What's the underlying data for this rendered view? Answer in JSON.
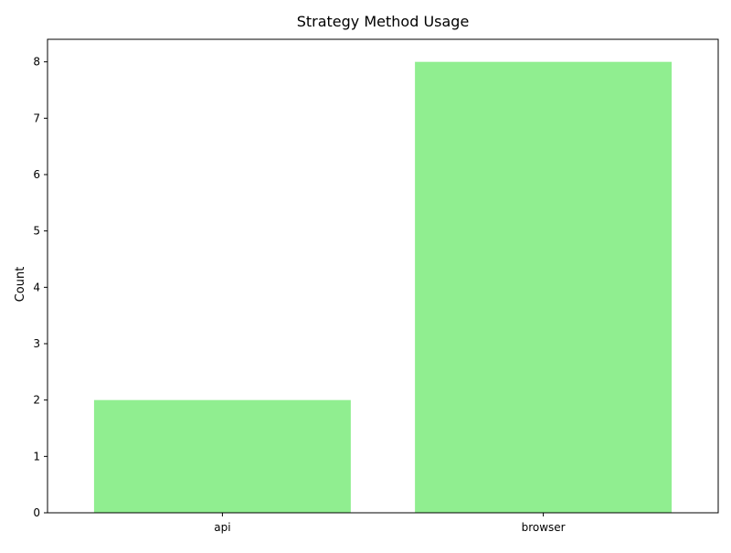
{
  "chart_data": {
    "type": "bar",
    "title": "Strategy Method Usage",
    "xlabel": "",
    "ylabel": "Count",
    "categories": [
      "api",
      "browser"
    ],
    "values": [
      2,
      8
    ],
    "ylim": [
      0,
      8.4
    ],
    "yticks": [
      0,
      1,
      2,
      3,
      4,
      5,
      6,
      7,
      8
    ],
    "grid": false,
    "legend": "none",
    "bar_color": "#90ee90",
    "axis_color": "#000000"
  }
}
